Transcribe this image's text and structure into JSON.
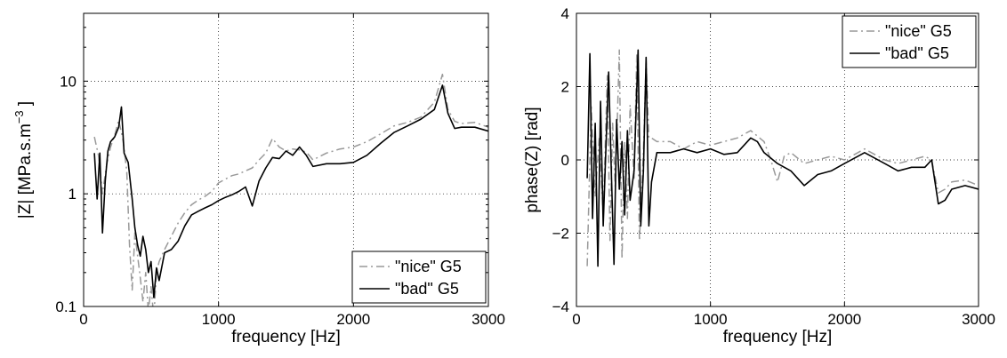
{
  "chart_data": [
    {
      "type": "line",
      "xlabel": "frequency [Hz]",
      "ylabel": "|Z| [MPa.s.m",
      "ylabel_sup": "−3",
      "ylabel_close": "]",
      "xlim": [
        0,
        3000
      ],
      "ylim": [
        0.1,
        40
      ],
      "yscale": "log",
      "grid": true,
      "legend_position": "bottom-right",
      "xticks": [
        0,
        1000,
        2000,
        3000
      ],
      "xtick_labels": [
        "0",
        "1000",
        "2000",
        "3000"
      ],
      "yticks": [
        0.1,
        1,
        10
      ],
      "ytick_labels": [
        "0.1",
        "1",
        "10"
      ],
      "series": [
        {
          "name": "\"nice\" G5",
          "color": "#999999",
          "style": "dashdot",
          "points": [
            [
              80,
              3.2
            ],
            [
              110,
              2.2
            ],
            [
              140,
              1.0
            ],
            [
              170,
              1.8
            ],
            [
              200,
              2.6
            ],
            [
              230,
              3.3
            ],
            [
              260,
              4.5
            ],
            [
              290,
              3.1
            ],
            [
              320,
              1.6
            ],
            [
              340,
              0.35
            ],
            [
              360,
              0.14
            ],
            [
              380,
              0.45
            ],
            [
              400,
              0.28
            ],
            [
              420,
              0.18
            ],
            [
              440,
              0.11
            ],
            [
              460,
              0.2
            ],
            [
              480,
              0.09
            ],
            [
              500,
              0.15
            ],
            [
              520,
              0.08
            ],
            [
              540,
              0.2
            ],
            [
              560,
              0.25
            ],
            [
              600,
              0.32
            ],
            [
              650,
              0.42
            ],
            [
              700,
              0.55
            ],
            [
              750,
              0.68
            ],
            [
              800,
              0.8
            ],
            [
              850,
              0.88
            ],
            [
              900,
              0.95
            ],
            [
              950,
              1.05
            ],
            [
              1000,
              1.25
            ],
            [
              1050,
              1.35
            ],
            [
              1100,
              1.45
            ],
            [
              1150,
              1.5
            ],
            [
              1200,
              1.6
            ],
            [
              1250,
              1.7
            ],
            [
              1300,
              2.0
            ],
            [
              1350,
              2.3
            ],
            [
              1400,
              3.1
            ],
            [
              1450,
              2.6
            ],
            [
              1500,
              2.4
            ],
            [
              1550,
              2.5
            ],
            [
              1600,
              2.45
            ],
            [
              1650,
              2.35
            ],
            [
              1700,
              2.0
            ],
            [
              1800,
              2.3
            ],
            [
              1900,
              2.5
            ],
            [
              2000,
              2.6
            ],
            [
              2100,
              2.9
            ],
            [
              2200,
              3.4
            ],
            [
              2300,
              4.0
            ],
            [
              2400,
              4.3
            ],
            [
              2500,
              4.8
            ],
            [
              2600,
              6.5
            ],
            [
              2660,
              11.5
            ],
            [
              2700,
              5.6
            ],
            [
              2750,
              4.4
            ],
            [
              2800,
              4.2
            ],
            [
              2900,
              4.3
            ],
            [
              3000,
              3.9
            ]
          ]
        },
        {
          "name": "\"bad\" G5",
          "color": "#000000",
          "style": "solid",
          "points": [
            [
              80,
              2.3
            ],
            [
              100,
              0.9
            ],
            [
              120,
              2.3
            ],
            [
              140,
              0.45
            ],
            [
              160,
              1.3
            ],
            [
              180,
              2.4
            ],
            [
              200,
              2.9
            ],
            [
              230,
              3.2
            ],
            [
              260,
              3.9
            ],
            [
              280,
              5.9
            ],
            [
              300,
              2.3
            ],
            [
              330,
              1.9
            ],
            [
              360,
              0.9
            ],
            [
              380,
              0.5
            ],
            [
              400,
              0.35
            ],
            [
              420,
              0.28
            ],
            [
              440,
              0.42
            ],
            [
              460,
              0.32
            ],
            [
              480,
              0.2
            ],
            [
              500,
              0.25
            ],
            [
              520,
              0.12
            ],
            [
              540,
              0.22
            ],
            [
              560,
              0.17
            ],
            [
              600,
              0.3
            ],
            [
              650,
              0.32
            ],
            [
              700,
              0.38
            ],
            [
              750,
              0.52
            ],
            [
              800,
              0.65
            ],
            [
              850,
              0.7
            ],
            [
              900,
              0.75
            ],
            [
              950,
              0.8
            ],
            [
              1000,
              0.87
            ],
            [
              1050,
              0.93
            ],
            [
              1100,
              0.98
            ],
            [
              1150,
              1.05
            ],
            [
              1200,
              1.15
            ],
            [
              1250,
              0.78
            ],
            [
              1300,
              1.3
            ],
            [
              1350,
              1.7
            ],
            [
              1400,
              2.1
            ],
            [
              1450,
              2.05
            ],
            [
              1500,
              2.4
            ],
            [
              1550,
              2.2
            ],
            [
              1600,
              2.6
            ],
            [
              1650,
              2.2
            ],
            [
              1700,
              1.75
            ],
            [
              1800,
              1.85
            ],
            [
              1900,
              1.85
            ],
            [
              2000,
              1.9
            ],
            [
              2100,
              2.2
            ],
            [
              2200,
              2.8
            ],
            [
              2300,
              3.5
            ],
            [
              2400,
              4.0
            ],
            [
              2500,
              4.6
            ],
            [
              2600,
              5.6
            ],
            [
              2660,
              9.2
            ],
            [
              2700,
              5.2
            ],
            [
              2750,
              3.8
            ],
            [
              2800,
              3.9
            ],
            [
              2900,
              3.9
            ],
            [
              3000,
              3.6
            ]
          ]
        }
      ]
    },
    {
      "type": "line",
      "xlabel": "frequency [Hz]",
      "ylabel": "phase(Z) [rad]",
      "xlim": [
        0,
        3000
      ],
      "ylim": [
        -4,
        4
      ],
      "yscale": "linear",
      "grid": true,
      "legend_position": "top-right",
      "xticks": [
        0,
        1000,
        2000,
        3000
      ],
      "xtick_labels": [
        "0",
        "1000",
        "2000",
        "3000"
      ],
      "yticks": [
        -4,
        -2,
        0,
        2,
        4
      ],
      "ytick_labels": [
        "−4",
        "−2",
        "0",
        "2",
        "4"
      ],
      "series": [
        {
          "name": "\"nice\" G5",
          "color": "#999999",
          "style": "dashdot",
          "points": [
            [
              80,
              -2.9
            ],
            [
              110,
              1.5
            ],
            [
              140,
              -1.0
            ],
            [
              170,
              0.6
            ],
            [
              200,
              -1.5
            ],
            [
              230,
              2.3
            ],
            [
              250,
              -2.2
            ],
            [
              270,
              1.0
            ],
            [
              290,
              -0.8
            ],
            [
              320,
              3.0
            ],
            [
              340,
              -2.7
            ],
            [
              360,
              0.5
            ],
            [
              380,
              -1.6
            ],
            [
              400,
              1.5
            ],
            [
              430,
              -0.5
            ],
            [
              450,
              2.9
            ],
            [
              470,
              -2.2
            ],
            [
              500,
              0.2
            ],
            [
              520,
              2.7
            ],
            [
              540,
              0.6
            ],
            [
              560,
              0.6
            ],
            [
              600,
              0.5
            ],
            [
              700,
              0.5
            ],
            [
              800,
              0.3
            ],
            [
              900,
              0.5
            ],
            [
              1000,
              0.4
            ],
            [
              1100,
              0.5
            ],
            [
              1200,
              0.6
            ],
            [
              1300,
              0.8
            ],
            [
              1400,
              0.5
            ],
            [
              1450,
              0.0
            ],
            [
              1500,
              -0.6
            ],
            [
              1550,
              0.1
            ],
            [
              1600,
              0.2
            ],
            [
              1700,
              -0.1
            ],
            [
              1800,
              0.0
            ],
            [
              1900,
              0.1
            ],
            [
              2000,
              0.0
            ],
            [
              2100,
              0.2
            ],
            [
              2150,
              0.3
            ],
            [
              2200,
              0.2
            ],
            [
              2300,
              0.0
            ],
            [
              2400,
              -0.1
            ],
            [
              2500,
              0.0
            ],
            [
              2600,
              0.1
            ],
            [
              2650,
              0.0
            ],
            [
              2700,
              -0.9
            ],
            [
              2750,
              -0.8
            ],
            [
              2800,
              -0.6
            ],
            [
              2900,
              -0.55
            ],
            [
              3000,
              -0.7
            ]
          ]
        },
        {
          "name": "\"bad\" G5",
          "color": "#000000",
          "style": "solid",
          "points": [
            [
              80,
              -0.5
            ],
            [
              100,
              2.9
            ],
            [
              120,
              -1.6
            ],
            [
              140,
              1.0
            ],
            [
              160,
              -2.9
            ],
            [
              180,
              1.6
            ],
            [
              200,
              -1.8
            ],
            [
              220,
              0.3
            ],
            [
              240,
              2.4
            ],
            [
              260,
              -0.3
            ],
            [
              280,
              -2.85
            ],
            [
              300,
              1.1
            ],
            [
              320,
              -0.8
            ],
            [
              340,
              0.5
            ],
            [
              360,
              -1.5
            ],
            [
              380,
              0.8
            ],
            [
              400,
              -1.1
            ],
            [
              430,
              -0.3
            ],
            [
              460,
              3.0
            ],
            [
              480,
              -1.8
            ],
            [
              500,
              -0.3
            ],
            [
              520,
              2.8
            ],
            [
              540,
              -1.8
            ],
            [
              560,
              -0.6
            ],
            [
              600,
              0.2
            ],
            [
              700,
              0.2
            ],
            [
              800,
              0.3
            ],
            [
              900,
              0.2
            ],
            [
              1000,
              0.3
            ],
            [
              1100,
              0.15
            ],
            [
              1200,
              0.2
            ],
            [
              1300,
              0.6
            ],
            [
              1350,
              0.5
            ],
            [
              1400,
              0.2
            ],
            [
              1500,
              -0.1
            ],
            [
              1600,
              -0.3
            ],
            [
              1700,
              -0.7
            ],
            [
              1800,
              -0.4
            ],
            [
              1900,
              -0.3
            ],
            [
              2000,
              -0.1
            ],
            [
              2100,
              0.1
            ],
            [
              2150,
              0.2
            ],
            [
              2200,
              0.1
            ],
            [
              2300,
              -0.1
            ],
            [
              2400,
              -0.3
            ],
            [
              2500,
              -0.2
            ],
            [
              2600,
              -0.2
            ],
            [
              2650,
              0.0
            ],
            [
              2700,
              -1.2
            ],
            [
              2750,
              -1.1
            ],
            [
              2800,
              -0.8
            ],
            [
              2900,
              -0.7
            ],
            [
              3000,
              -0.8
            ]
          ]
        }
      ]
    }
  ]
}
